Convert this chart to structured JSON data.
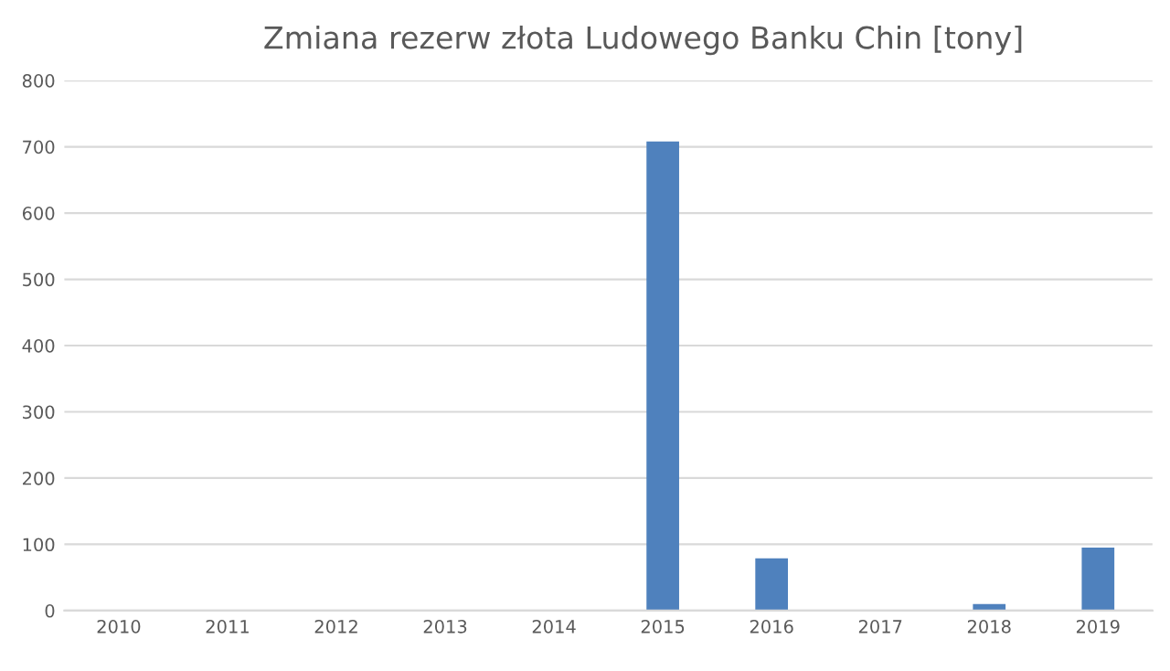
{
  "chart_data": {
    "type": "bar",
    "title": "Zmiana rezerw złota Ludowego Banku Chin [tony]",
    "categories": [
      "2010",
      "2011",
      "2012",
      "2013",
      "2014",
      "2015",
      "2016",
      "2017",
      "2018",
      "2019"
    ],
    "values": [
      0,
      0,
      0,
      0,
      0,
      708,
      79,
      0,
      10,
      95
    ],
    "color": "#4f81bd",
    "ylim": [
      0,
      800
    ],
    "yticks": [
      0,
      100,
      200,
      300,
      400,
      500,
      600,
      700,
      800
    ],
    "grid": "y"
  }
}
